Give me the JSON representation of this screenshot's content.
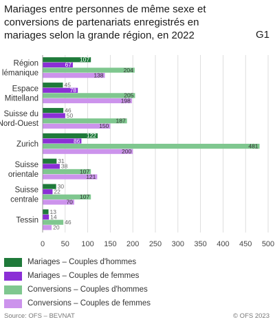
{
  "title": "Mariages entre personnes de même sexe et conversions de partenariats enregistrés en mariages selon la grande région, en 2022",
  "figure_id": "G1",
  "source": "Source: OFS – BEVNAT",
  "copyright": "© OFS 2023",
  "chart_data": {
    "type": "bar",
    "orientation": "horizontal",
    "title": "Mariages entre personnes de même sexe et conversions de partenariats enregistrés en mariages selon la grande région, en 2022",
    "categories": [
      [
        "Région",
        "lémanique"
      ],
      [
        "Espace",
        "Mittelland"
      ],
      [
        "Suisse du",
        "Nord-Ouest"
      ],
      [
        "Zurich"
      ],
      [
        "Suisse",
        "orientale"
      ],
      [
        "Suisse",
        "centrale"
      ],
      [
        "Tessin"
      ]
    ],
    "series": [
      {
        "name": "Mariages – Couples d'hommes",
        "color": "#1f7a3a",
        "values": [
          107,
          45,
          46,
          122,
          31,
          30,
          13
        ]
      },
      {
        "name": "Mariages – Couples de femmes",
        "color": "#8b2fd6",
        "values": [
          67,
          78,
          50,
          86,
          38,
          22,
          14
        ]
      },
      {
        "name": "Conversions – Couples d'hommes",
        "color": "#7fc78f",
        "values": [
          204,
          205,
          187,
          481,
          107,
          107,
          46
        ]
      },
      {
        "name": "Conversions – Couples de femmes",
        "color": "#cc93ec",
        "values": [
          138,
          198,
          150,
          200,
          121,
          70,
          20
        ]
      }
    ],
    "xlim": [
      0,
      500
    ],
    "xticks": [
      0,
      50,
      100,
      150,
      200,
      250,
      300,
      350,
      400,
      450,
      500
    ],
    "grid": true,
    "legend_position": "bottom-left",
    "xlabel": "",
    "ylabel": ""
  }
}
